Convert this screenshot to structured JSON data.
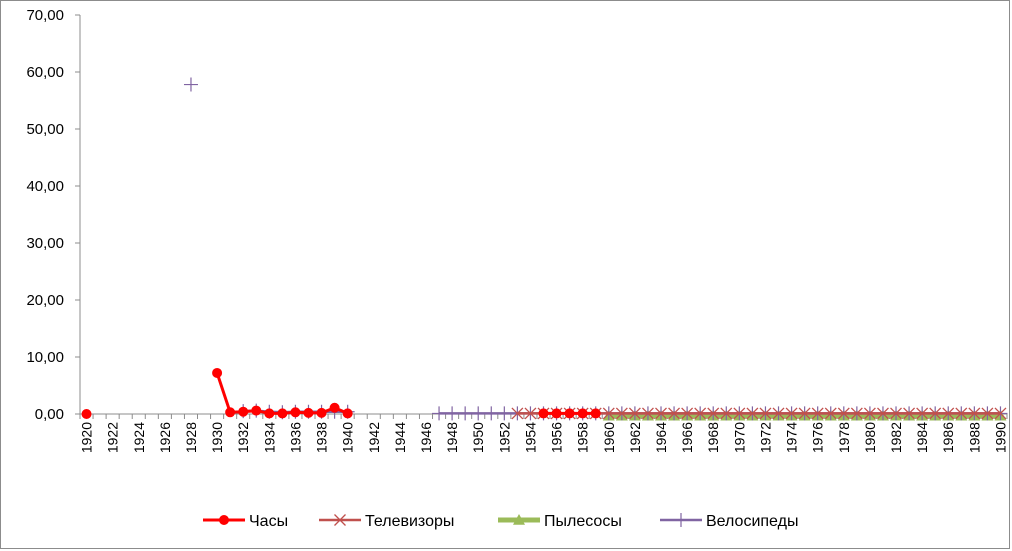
{
  "chart_data": {
    "type": "line",
    "title": "",
    "xlabel": "",
    "ylabel": "",
    "ylim": [
      0,
      70
    ],
    "yticks": [
      0,
      10,
      20,
      30,
      40,
      50,
      60,
      70
    ],
    "ytick_labels": [
      "0,00",
      "10,00",
      "20,00",
      "30,00",
      "40,00",
      "50,00",
      "60,00",
      "70,00"
    ],
    "x_range": [
      1920,
      1990
    ],
    "xticks": [
      1920,
      1922,
      1924,
      1926,
      1928,
      1930,
      1932,
      1934,
      1936,
      1938,
      1940,
      1942,
      1944,
      1946,
      1948,
      1950,
      1952,
      1954,
      1956,
      1958,
      1960,
      1962,
      1964,
      1966,
      1968,
      1970,
      1972,
      1974,
      1976,
      1978,
      1980,
      1982,
      1984,
      1986,
      1988,
      1990
    ],
    "grid": false,
    "legend_position": "bottom",
    "series": [
      {
        "name": "Часы",
        "color": "#ff0000",
        "marker": "circle",
        "points": [
          [
            1920,
            0.0
          ],
          [
            1930,
            7.2
          ],
          [
            1931,
            0.3
          ],
          [
            1932,
            0.4
          ],
          [
            1933,
            0.6
          ],
          [
            1934,
            0.1
          ],
          [
            1935,
            0.1
          ],
          [
            1936,
            0.3
          ],
          [
            1937,
            0.2
          ],
          [
            1938,
            0.2
          ],
          [
            1939,
            1.1
          ],
          [
            1940,
            0.1
          ],
          [
            1955,
            0.1
          ],
          [
            1956,
            0.1
          ],
          [
            1957,
            0.1
          ],
          [
            1958,
            0.1
          ],
          [
            1959,
            0.1
          ]
        ]
      },
      {
        "name": "Телевизоры",
        "color": "#c0504d",
        "marker": "x",
        "points": [
          [
            1953,
            0.1
          ],
          [
            1954,
            0.1
          ],
          [
            1955,
            0.1
          ],
          [
            1956,
            0.1
          ],
          [
            1957,
            0.1
          ],
          [
            1958,
            0.1
          ],
          [
            1959,
            0.1
          ],
          [
            1960,
            0.1
          ],
          [
            1961,
            0.1
          ],
          [
            1962,
            0.1
          ],
          [
            1963,
            0.1
          ],
          [
            1964,
            0.1
          ],
          [
            1965,
            0.1
          ],
          [
            1966,
            0.1
          ],
          [
            1967,
            0.1
          ],
          [
            1968,
            0.1
          ],
          [
            1969,
            0.1
          ],
          [
            1970,
            0.1
          ],
          [
            1971,
            0.1
          ],
          [
            1972,
            0.1
          ],
          [
            1973,
            0.1
          ],
          [
            1974,
            0.1
          ],
          [
            1975,
            0.1
          ],
          [
            1976,
            0.1
          ],
          [
            1977,
            0.1
          ],
          [
            1978,
            0.1
          ],
          [
            1979,
            0.1
          ],
          [
            1980,
            0.1
          ],
          [
            1981,
            0.1
          ],
          [
            1982,
            0.1
          ],
          [
            1983,
            0.1
          ],
          [
            1984,
            0.1
          ],
          [
            1985,
            0.1
          ],
          [
            1986,
            0.1
          ],
          [
            1987,
            0.1
          ],
          [
            1988,
            0.1
          ],
          [
            1989,
            0.1
          ],
          [
            1990,
            0.1
          ]
        ]
      },
      {
        "name": "Пылесосы",
        "color": "#9bbb59",
        "marker": "triangle",
        "points": [
          [
            1960,
            -0.3
          ],
          [
            1961,
            -0.3
          ],
          [
            1962,
            -0.3
          ],
          [
            1963,
            -0.3
          ],
          [
            1964,
            -0.3
          ],
          [
            1965,
            -0.3
          ],
          [
            1966,
            -0.3
          ],
          [
            1967,
            -0.3
          ],
          [
            1968,
            -0.3
          ],
          [
            1969,
            -0.3
          ],
          [
            1970,
            -0.3
          ],
          [
            1971,
            -0.3
          ],
          [
            1972,
            -0.3
          ],
          [
            1973,
            -0.3
          ],
          [
            1974,
            -0.3
          ],
          [
            1975,
            -0.3
          ],
          [
            1976,
            -0.3
          ],
          [
            1977,
            -0.3
          ],
          [
            1978,
            -0.3
          ],
          [
            1979,
            -0.3
          ],
          [
            1980,
            -0.3
          ],
          [
            1981,
            -0.3
          ],
          [
            1982,
            -0.3
          ],
          [
            1983,
            -0.3
          ],
          [
            1984,
            -0.3
          ],
          [
            1985,
            -0.3
          ],
          [
            1986,
            -0.3
          ],
          [
            1987,
            -0.3
          ],
          [
            1988,
            -0.3
          ],
          [
            1989,
            -0.3
          ],
          [
            1990,
            -0.3
          ]
        ]
      },
      {
        "name": "Велосипеды",
        "color": "#8064a2",
        "marker": "plus",
        "segments": [
          [
            [
              1928,
              57.8
            ]
          ],
          [
            [
              1932,
              0.5
            ],
            [
              1933,
              0.6
            ],
            [
              1934,
              0.4
            ],
            [
              1935,
              0.3
            ],
            [
              1936,
              0.4
            ],
            [
              1937,
              0.4
            ],
            [
              1938,
              0.4
            ],
            [
              1939,
              0.4
            ],
            [
              1940,
              0.4
            ]
          ],
          [
            [
              1947,
              0.1
            ],
            [
              1948,
              0.1
            ],
            [
              1949,
              0.1
            ],
            [
              1950,
              0.1
            ],
            [
              1951,
              0.1
            ],
            [
              1952,
              0.1
            ],
            [
              1953,
              0.1
            ],
            [
              1954,
              0.1
            ],
            [
              1955,
              0.1
            ],
            [
              1956,
              0.1
            ],
            [
              1957,
              0.1
            ],
            [
              1958,
              0.1
            ],
            [
              1959,
              0.1
            ],
            [
              1960,
              0.1
            ],
            [
              1961,
              0.1
            ],
            [
              1962,
              0.1
            ],
            [
              1963,
              0.1
            ],
            [
              1964,
              0.1
            ],
            [
              1965,
              0.1
            ],
            [
              1966,
              0.1
            ],
            [
              1967,
              0.1
            ],
            [
              1968,
              0.1
            ],
            [
              1969,
              0.1
            ],
            [
              1970,
              0.1
            ],
            [
              1971,
              0.1
            ],
            [
              1972,
              0.1
            ],
            [
              1973,
              0.1
            ],
            [
              1974,
              0.1
            ],
            [
              1975,
              0.1
            ],
            [
              1976,
              0.1
            ],
            [
              1977,
              0.1
            ],
            [
              1978,
              0.1
            ],
            [
              1979,
              0.1
            ],
            [
              1980,
              0.1
            ],
            [
              1981,
              0.1
            ],
            [
              1982,
              0.1
            ],
            [
              1983,
              0.1
            ],
            [
              1984,
              0.1
            ],
            [
              1985,
              0.1
            ],
            [
              1986,
              0.1
            ],
            [
              1987,
              0.1
            ],
            [
              1988,
              0.1
            ],
            [
              1989,
              0.1
            ],
            [
              1990,
              0.1
            ]
          ]
        ]
      }
    ]
  }
}
